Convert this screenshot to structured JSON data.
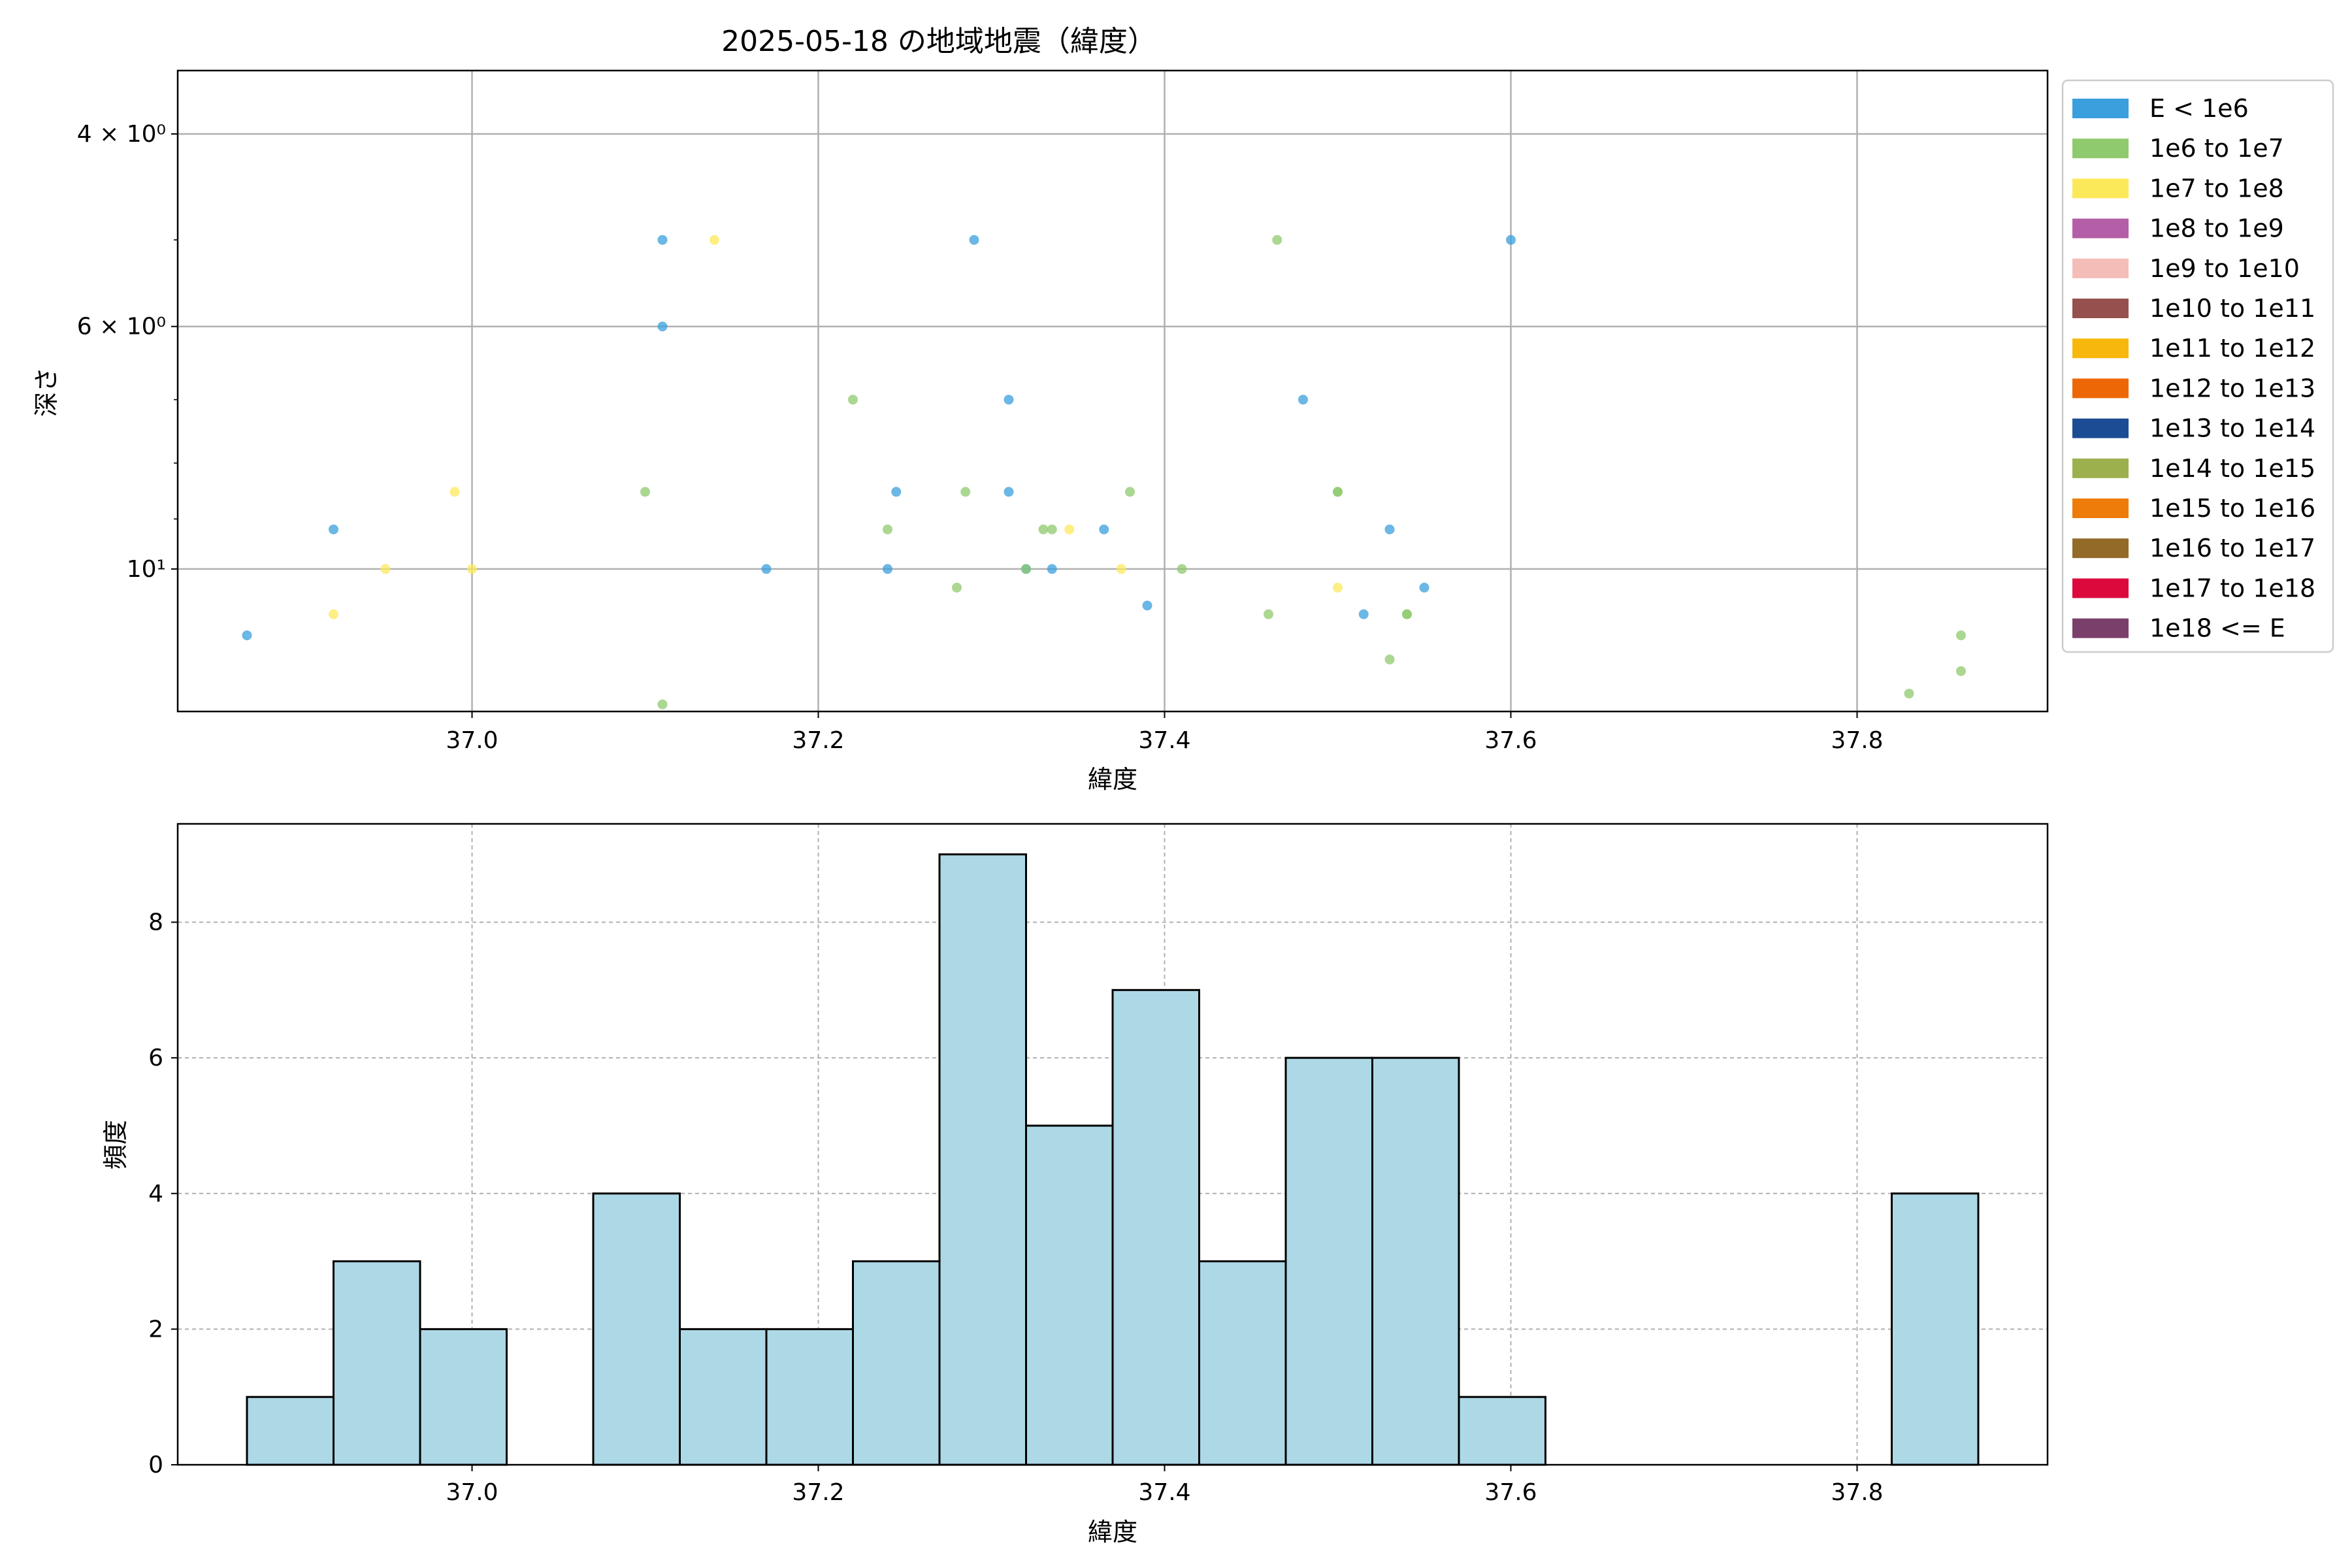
{
  "figure_title": "2025-05-18 の地域地震（緯度）",
  "legend_entries": [
    {
      "label": "E < 1e6",
      "color": "#3a9fdc"
    },
    {
      "label": "1e6 to 1e7",
      "color": "#8fca6e"
    },
    {
      "label": "1e7 to 1e8",
      "color": "#fce95a"
    },
    {
      "label": "1e8 to 1e9",
      "color": "#b45ea7"
    },
    {
      "label": "1e9 to 1e10",
      "color": "#f4bdb7"
    },
    {
      "label": "1e10 to 1e11",
      "color": "#96514f"
    },
    {
      "label": "1e11 to 1e12",
      "color": "#f7b70c"
    },
    {
      "label": "1e12 to 1e13",
      "color": "#ee6706"
    },
    {
      "label": "1e13 to 1e14",
      "color": "#1c4c94"
    },
    {
      "label": "1e14 to 1e15",
      "color": "#9cb04d"
    },
    {
      "label": "1e15 to 1e16",
      "color": "#ee7c08"
    },
    {
      "label": "1e16 to 1e17",
      "color": "#946a28"
    },
    {
      "label": "1e17 to 1e18",
      "color": "#dc0a3c"
    },
    {
      "label": "1e18 <= E",
      "color": "#7a3f6a"
    }
  ],
  "chart_data": [
    {
      "type": "scatter",
      "xlabel": "緯度",
      "ylabel": "深さ",
      "xlim": [
        36.83,
        37.91
      ],
      "ylim": [
        13.5,
        3.5
      ],
      "y_scale": "log",
      "y_inverted": true,
      "grid": true,
      "legend_position": "outside-right",
      "x_ticks": [
        {
          "value": 37.0,
          "label": "37.0"
        },
        {
          "value": 37.2,
          "label": "37.2"
        },
        {
          "value": 37.4,
          "label": "37.4"
        },
        {
          "value": 37.6,
          "label": "37.6"
        },
        {
          "value": 37.8,
          "label": "37.8"
        }
      ],
      "y_ticks": [
        {
          "value": 4,
          "label": "4 × 10⁰"
        },
        {
          "value": 6,
          "label": "6 × 10⁰"
        },
        {
          "value": 10,
          "label": "10¹"
        }
      ],
      "y_minor_ticks": [
        5,
        7,
        8,
        9
      ],
      "series": [
        {
          "name": "E < 1e6",
          "color": "#3a9fdc",
          "points": [
            [
              36.87,
              11.5
            ],
            [
              36.92,
              9.2
            ],
            [
              37.11,
              6.0
            ],
            [
              37.11,
              5.0
            ],
            [
              37.17,
              10.0
            ],
            [
              37.24,
              10.0
            ],
            [
              37.245,
              8.5
            ],
            [
              37.29,
              5.0
            ],
            [
              37.31,
              8.5
            ],
            [
              37.31,
              7.0
            ],
            [
              37.32,
              10.0
            ],
            [
              37.335,
              10.0
            ],
            [
              37.365,
              9.2
            ],
            [
              37.39,
              10.8
            ],
            [
              37.48,
              7.0
            ],
            [
              37.515,
              11.0
            ],
            [
              37.53,
              9.2
            ],
            [
              37.55,
              10.4
            ],
            [
              37.6,
              5.0
            ]
          ]
        },
        {
          "name": "1e6 to 1e7",
          "color": "#8fca6e",
          "points": [
            [
              37.1,
              8.5
            ],
            [
              37.11,
              13.3
            ],
            [
              37.22,
              7.0
            ],
            [
              37.24,
              9.2
            ],
            [
              37.28,
              10.4
            ],
            [
              37.285,
              8.5
            ],
            [
              37.32,
              10.0
            ],
            [
              37.33,
              9.2
            ],
            [
              37.335,
              9.2
            ],
            [
              37.38,
              8.5
            ],
            [
              37.41,
              10.0
            ],
            [
              37.46,
              11.0
            ],
            [
              37.465,
              5.0
            ],
            [
              37.5,
              8.5
            ],
            [
              37.5,
              8.5
            ],
            [
              37.53,
              12.1
            ],
            [
              37.54,
              11.0
            ],
            [
              37.54,
              11.0
            ],
            [
              37.83,
              13.0
            ],
            [
              37.86,
              11.5
            ],
            [
              37.86,
              12.4
            ]
          ]
        },
        {
          "name": "1e7 to 1e8",
          "color": "#fce95a",
          "points": [
            [
              36.92,
              11.0
            ],
            [
              36.95,
              10.0
            ],
            [
              36.99,
              8.5
            ],
            [
              37.0,
              10.0
            ],
            [
              37.14,
              5.0
            ],
            [
              37.345,
              9.2
            ],
            [
              37.375,
              10.0
            ],
            [
              37.5,
              10.4
            ]
          ]
        }
      ]
    },
    {
      "type": "bar",
      "xlabel": "緯度",
      "ylabel": "頻度",
      "xlim": [
        36.83,
        37.91
      ],
      "ylim": [
        0,
        9.45
      ],
      "grid": true,
      "bar_color": "#add8e6",
      "x_ticks": [
        {
          "value": 37.0,
          "label": "37.0"
        },
        {
          "value": 37.2,
          "label": "37.2"
        },
        {
          "value": 37.4,
          "label": "37.4"
        },
        {
          "value": 37.6,
          "label": "37.6"
        },
        {
          "value": 37.8,
          "label": "37.8"
        }
      ],
      "y_ticks": [
        {
          "value": 0,
          "label": "0"
        },
        {
          "value": 2,
          "label": "2"
        },
        {
          "value": 4,
          "label": "4"
        },
        {
          "value": 6,
          "label": "6"
        },
        {
          "value": 8,
          "label": "8"
        }
      ],
      "bin_edges": [
        36.87,
        36.92,
        36.97,
        37.02,
        37.07,
        37.12,
        37.17,
        37.22,
        37.27,
        37.32,
        37.37,
        37.42,
        37.47,
        37.52,
        37.57,
        37.62,
        37.67,
        37.72,
        37.77,
        37.82,
        37.87
      ],
      "values": [
        1,
        3,
        2,
        0,
        4,
        2,
        2,
        3,
        9,
        5,
        7,
        3,
        6,
        6,
        1,
        0,
        0,
        0,
        0,
        4
      ]
    }
  ]
}
